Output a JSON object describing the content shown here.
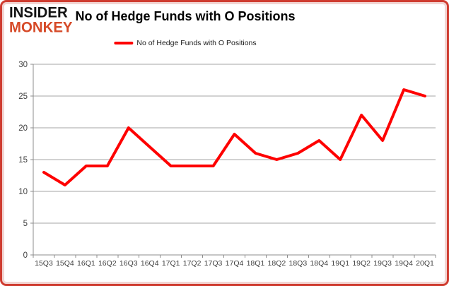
{
  "logo": {
    "line1": "INSIDER",
    "line2": "MONKEY"
  },
  "header": {
    "title": "No of Hedge Funds with O Positions"
  },
  "legend": {
    "label": "No of Hedge Funds with O Positions"
  },
  "colors": {
    "line": "#fe0000",
    "frame": "#cf3c30",
    "logo_black": "#131313",
    "logo_red": "#d64a28",
    "grid": "#a6a6a6",
    "axis": "#8c8c8c",
    "tick_text": "#3f3f3f"
  },
  "chart_data": {
    "type": "line",
    "title": "No of Hedge Funds with O Positions",
    "categories": [
      "15Q3",
      "15Q4",
      "16Q1",
      "16Q2",
      "16Q3",
      "16Q4",
      "17Q1",
      "17Q2",
      "17Q3",
      "17Q4",
      "18Q1",
      "18Q2",
      "18Q3",
      "18Q4",
      "19Q1",
      "19Q2",
      "19Q3",
      "19Q4",
      "20Q1"
    ],
    "series": [
      {
        "name": "No of Hedge Funds with O Positions",
        "values": [
          13,
          11,
          14,
          14,
          20,
          17,
          14,
          14,
          14,
          19,
          16,
          15,
          16,
          18,
          15,
          22,
          18,
          26,
          25
        ]
      }
    ],
    "xlabel": "",
    "ylabel": "",
    "ylim": [
      0,
      30
    ],
    "yticks": [
      0,
      5,
      10,
      15,
      20,
      25,
      30
    ],
    "grid": "horizontal",
    "legend_position": "top"
  }
}
